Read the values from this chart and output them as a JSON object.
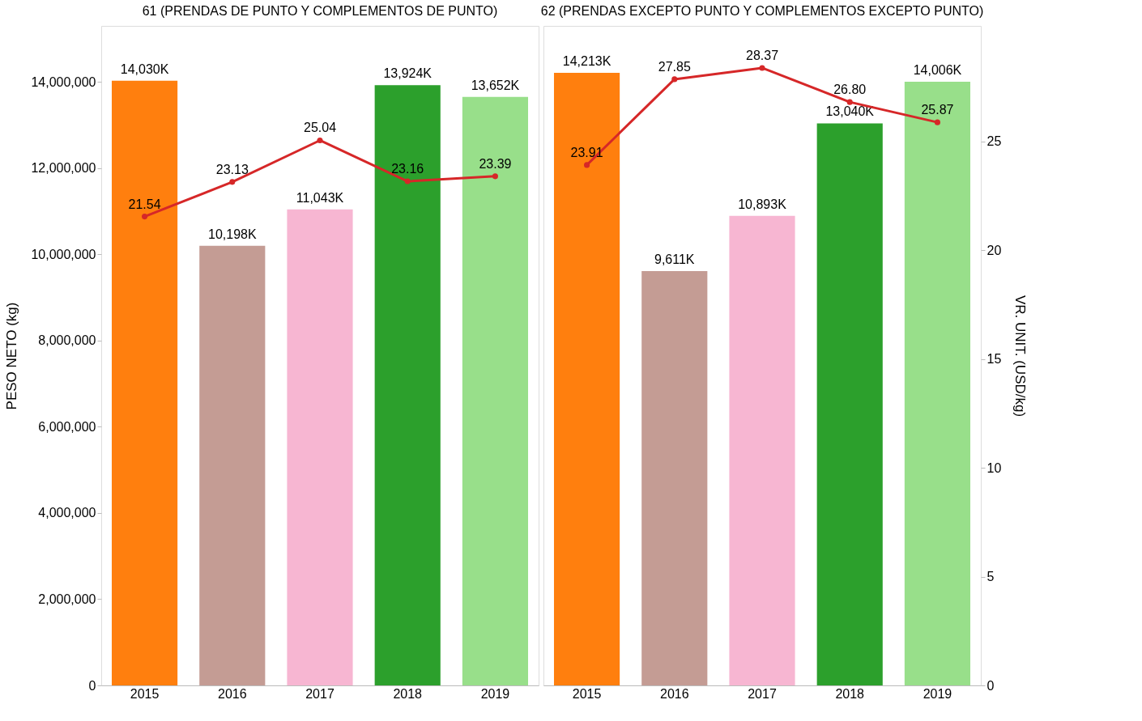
{
  "chart_data": [
    {
      "type": "bar",
      "title": "61 (PRENDAS DE PUNTO Y COMPLEMENTOS DE PUNTO)",
      "ylabel": "PESO NETO (kg)",
      "categories": [
        "2015",
        "2016",
        "2017",
        "2018",
        "2019"
      ],
      "ylim": [
        0,
        15300000
      ],
      "yticks": [
        0,
        {
          "value": 2000000,
          "label": "2,000,000"
        },
        {
          "value": 4000000,
          "label": "4,000,000"
        },
        {
          "value": 6000000,
          "label": "6,000,000"
        },
        {
          "value": 8000000,
          "label": "8,000,000"
        },
        {
          "value": 10000000,
          "label": "10,000,000"
        },
        {
          "value": 12000000,
          "label": "12,000,000"
        },
        {
          "value": 14000000,
          "label": "14,000,000"
        }
      ],
      "y2lim": [
        0,
        30.3
      ],
      "tick_labels": [
        "x",
        "y"
      ],
      "grid": false,
      "legend": false,
      "marker": "circle",
      "line_style": "solid",
      "series": [
        {
          "colors": [
            "#ff7f0e",
            "#c49c94",
            "#f7b6d2",
            "#2ca02c",
            "#98df8a"
          ],
          "values": [
            14030000,
            10198000,
            11043000,
            13924000,
            13652000
          ],
          "value_labels": [
            "14,030K",
            "10,198K",
            "11,043K",
            "13,924K",
            "13,652K"
          ]
        },
        {
          "type": "line",
          "axis": "y2",
          "color": "#d62728",
          "values": [
            21.54,
            23.13,
            25.04,
            23.16,
            23.39
          ],
          "value_labels": [
            "21.54",
            "23.13",
            "25.04",
            "23.16",
            "23.39"
          ]
        }
      ]
    },
    {
      "type": "bar",
      "title": "62 (PRENDAS EXCEPTO PUNTO Y COMPLEMENTOS EXCEPTO PUNTO)",
      "y2label": "VR. UNIT. (USD/kg)",
      "categories": [
        "2015",
        "2016",
        "2017",
        "2018",
        "2019"
      ],
      "ylim": [
        0,
        15300000
      ],
      "y2lim": [
        0,
        30.3
      ],
      "y2ticks": [
        0,
        5,
        10,
        15,
        20,
        25
      ],
      "tick_labels": [
        "x",
        "y2"
      ],
      "grid": false,
      "legend": false,
      "marker": "circle",
      "line_style": "solid",
      "series": [
        {
          "colors": [
            "#ff7f0e",
            "#c49c94",
            "#f7b6d2",
            "#2ca02c",
            "#98df8a"
          ],
          "values": [
            14213000,
            9611000,
            10893000,
            13040000,
            14006000
          ],
          "value_labels": [
            "14,213K",
            "9,611K",
            "10,893K",
            "13,040K",
            "14,006K"
          ]
        },
        {
          "type": "line",
          "axis": "y2",
          "color": "#d62728",
          "values": [
            23.91,
            27.85,
            28.37,
            26.8,
            25.87
          ],
          "value_labels": [
            "23.91",
            "27.85",
            "28.37",
            "26.80",
            "25.87"
          ]
        }
      ]
    }
  ]
}
